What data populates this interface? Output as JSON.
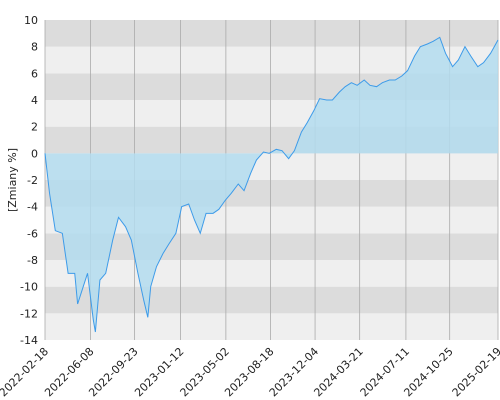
{
  "chart_data": {
    "type": "area",
    "ylabel": "[Zmiany %]",
    "x": [
      "2022-02-18",
      "2022-03-01",
      "2022-03-15",
      "2022-04-01",
      "2022-04-15",
      "2022-05-01",
      "2022-05-08",
      "2022-06-01",
      "2022-06-15",
      "2022-06-20",
      "2022-07-01",
      "2022-07-15",
      "2022-08-01",
      "2022-08-15",
      "2022-09-01",
      "2022-09-15",
      "2022-10-01",
      "2022-10-15",
      "2022-10-25",
      "2022-11-01",
      "2022-11-15",
      "2022-12-01",
      "2022-12-15",
      "2023-01-01",
      "2023-01-15",
      "2023-02-01",
      "2023-02-15",
      "2023-03-01",
      "2023-03-15",
      "2023-04-01",
      "2023-04-15",
      "2023-05-01",
      "2023-05-15",
      "2023-06-01",
      "2023-06-15",
      "2023-07-01",
      "2023-07-15",
      "2023-08-01",
      "2023-08-15",
      "2023-09-01",
      "2023-09-15",
      "2023-10-01",
      "2023-10-15",
      "2023-11-01",
      "2023-11-15",
      "2023-12-01",
      "2023-12-15",
      "2024-01-01",
      "2024-01-15",
      "2024-02-01",
      "2024-02-15",
      "2024-03-01",
      "2024-03-15",
      "2024-04-01",
      "2024-04-15",
      "2024-05-01",
      "2024-05-15",
      "2024-06-01",
      "2024-06-15",
      "2024-07-01",
      "2024-07-15",
      "2024-08-01",
      "2024-08-15",
      "2024-09-01",
      "2024-09-15",
      "2024-10-01",
      "2024-10-15",
      "2024-11-01",
      "2024-11-15",
      "2024-12-01",
      "2024-12-15",
      "2025-01-01",
      "2025-01-15",
      "2025-02-01",
      "2025-02-19"
    ],
    "values": [
      0,
      -3,
      -5.8,
      -6,
      -9,
      -9,
      -11.3,
      -9,
      -12.5,
      -13.4,
      -9.5,
      -9,
      -6.5,
      -4.8,
      -5.5,
      -6.5,
      -9,
      -11,
      -12.3,
      -10,
      -8.5,
      -7.5,
      -6.8,
      -6,
      -4,
      -3.8,
      -5,
      -6,
      -4.5,
      -4.5,
      -4.2,
      -3.5,
      -3,
      -2.3,
      -2.8,
      -1.5,
      -0.5,
      0.1,
      0,
      0.3,
      0.2,
      -0.4,
      0.2,
      1.6,
      2.3,
      3.2,
      4.1,
      4,
      4,
      4.6,
      5,
      5.3,
      5.1,
      5.5,
      5.1,
      5,
      5.3,
      5.5,
      5.5,
      5.8,
      6.2,
      7.3,
      8,
      8.2,
      8.4,
      8.7,
      7.5,
      6.5,
      7,
      8,
      7.3,
      6.5,
      6.8,
      7.5,
      8.5
    ],
    "color": "#3d9be9",
    "fill": "#b3dcef",
    "xlim": [
      "2022-02-18",
      "2025-02-19"
    ],
    "xticks": [
      "2022-02-18",
      "2022-06-08",
      "2022-09-23",
      "2023-01-12",
      "2023-05-02",
      "2023-08-18",
      "2023-12-04",
      "2024-03-21",
      "2024-07-11",
      "2024-10-25",
      "2025-02-19"
    ],
    "ylim": [
      -14,
      10
    ],
    "yticks": [
      -14,
      -12,
      -10,
      -8,
      -6,
      -4,
      -2,
      0,
      2,
      4,
      6,
      8,
      10
    ],
    "grid": "bands"
  }
}
